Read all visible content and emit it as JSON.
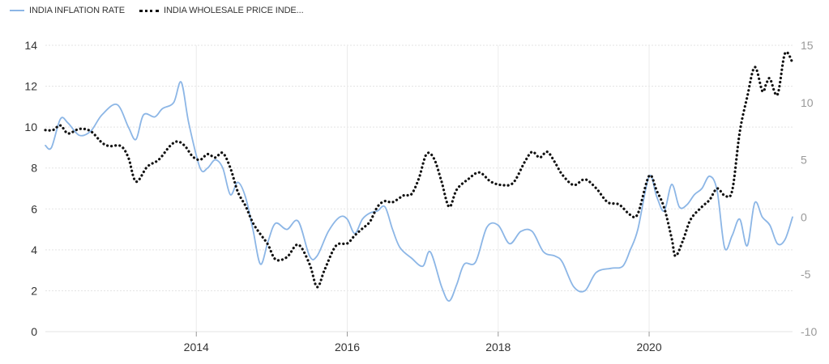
{
  "legend": [
    {
      "label": "INDIA INFLATION RATE",
      "color": "#8cb6e6",
      "style": "solid"
    },
    {
      "label": "INDIA WHOLESALE PRICE INDE...",
      "color": "#111111",
      "style": "dotted"
    }
  ],
  "chart_data": {
    "type": "line",
    "title": "",
    "xlabel": "",
    "ylabel": "",
    "grid": true,
    "legend_position": "top-left",
    "x_ticks": [
      "2014",
      "2016",
      "2018",
      "2020"
    ],
    "x_range": [
      2012.0,
      2021.9
    ],
    "y_left": {
      "range": [
        0,
        14
      ],
      "ticks": [
        "0",
        "2",
        "4",
        "6",
        "8",
        "10",
        "12",
        "14"
      ]
    },
    "y_right": {
      "range": [
        -10,
        15
      ],
      "ticks": [
        "-10",
        "-5",
        "0",
        "5",
        "10",
        "15"
      ]
    },
    "series": [
      {
        "name": "INDIA INFLATION RATE",
        "axis": "left",
        "color": "#8cb6e6",
        "x": [
          2012.0,
          2012.08,
          2012.2,
          2012.3,
          2012.45,
          2012.6,
          2012.75,
          2012.95,
          2013.1,
          2013.2,
          2013.3,
          2013.45,
          2013.55,
          2013.7,
          2013.8,
          2013.9,
          2014.05,
          2014.15,
          2014.25,
          2014.35,
          2014.45,
          2014.55,
          2014.65,
          2014.75,
          2014.85,
          2014.95,
          2015.05,
          2015.2,
          2015.35,
          2015.5,
          2015.6,
          2015.75,
          2015.9,
          2016.0,
          2016.1,
          2016.2,
          2016.3,
          2016.4,
          2016.5,
          2016.6,
          2016.7,
          2016.85,
          2017.0,
          2017.1,
          2017.25,
          2017.35,
          2017.45,
          2017.55,
          2017.7,
          2017.85,
          2018.0,
          2018.15,
          2018.3,
          2018.45,
          2018.6,
          2018.75,
          2018.85,
          2019.0,
          2019.15,
          2019.3,
          2019.5,
          2019.65,
          2019.75,
          2019.85,
          2020.0,
          2020.1,
          2020.2,
          2020.3,
          2020.4,
          2020.5,
          2020.6,
          2020.7,
          2020.8,
          2020.9,
          2021.0,
          2021.1,
          2021.2,
          2021.3,
          2021.4,
          2021.5,
          2021.6,
          2021.7,
          2021.8,
          2021.9
        ],
        "y": [
          9.1,
          9.0,
          10.4,
          10.2,
          9.6,
          9.8,
          10.6,
          11.1,
          10.0,
          9.4,
          10.6,
          10.5,
          10.9,
          11.2,
          12.2,
          10.2,
          8.0,
          8.0,
          8.4,
          8.0,
          6.7,
          7.3,
          6.6,
          5.0,
          3.3,
          4.4,
          5.3,
          5.0,
          5.4,
          3.7,
          3.7,
          4.9,
          5.6,
          5.5,
          4.8,
          5.5,
          5.8,
          5.9,
          6.1,
          5.0,
          4.1,
          3.6,
          3.2,
          3.9,
          2.2,
          1.5,
          2.3,
          3.3,
          3.4,
          5.1,
          5.2,
          4.3,
          4.9,
          4.9,
          3.9,
          3.7,
          3.4,
          2.2,
          2.0,
          2.9,
          3.1,
          3.2,
          4.0,
          5.0,
          7.6,
          6.6,
          5.9,
          7.2,
          6.1,
          6.2,
          6.7,
          7.0,
          7.6,
          6.9,
          4.1,
          4.7,
          5.5,
          4.2,
          6.3,
          5.6,
          5.2,
          4.3,
          4.5,
          5.6
        ]
      },
      {
        "name": "INDIA WHOLESALE PRICE INDE...",
        "axis": "right",
        "color": "#111111",
        "x": [
          2012.0,
          2012.1,
          2012.2,
          2012.3,
          2012.45,
          2012.6,
          2012.75,
          2012.85,
          2013.0,
          2013.1,
          2013.2,
          2013.35,
          2013.5,
          2013.65,
          2013.75,
          2013.85,
          2013.95,
          2014.05,
          2014.15,
          2014.25,
          2014.35,
          2014.45,
          2014.55,
          2014.65,
          2014.75,
          2014.85,
          2014.95,
          2015.05,
          2015.2,
          2015.35,
          2015.5,
          2015.6,
          2015.7,
          2015.85,
          2016.0,
          2016.1,
          2016.2,
          2016.3,
          2016.4,
          2016.5,
          2016.6,
          2016.75,
          2016.85,
          2016.95,
          2017.05,
          2017.15,
          2017.25,
          2017.35,
          2017.45,
          2017.6,
          2017.75,
          2017.9,
          2018.05,
          2018.2,
          2018.35,
          2018.45,
          2018.55,
          2018.65,
          2018.75,
          2018.85,
          2019.0,
          2019.15,
          2019.3,
          2019.45,
          2019.6,
          2019.75,
          2019.85,
          2020.0,
          2020.1,
          2020.2,
          2020.3,
          2020.35,
          2020.45,
          2020.55,
          2020.7,
          2020.8,
          2020.9,
          2021.0,
          2021.1,
          2021.2,
          2021.3,
          2021.4,
          2021.5,
          2021.55,
          2021.6,
          2021.7,
          2021.8,
          2021.9
        ],
        "y": [
          7.6,
          7.6,
          8.0,
          7.3,
          7.7,
          7.5,
          6.5,
          6.2,
          6.2,
          5.2,
          3.1,
          4.4,
          5.0,
          6.2,
          6.6,
          6.2,
          5.3,
          5.0,
          5.5,
          5.2,
          5.6,
          4.3,
          2.2,
          1.0,
          -0.5,
          -1.5,
          -2.4,
          -3.7,
          -3.5,
          -2.4,
          -4.1,
          -6.1,
          -4.6,
          -2.5,
          -2.3,
          -1.6,
          -1.0,
          -0.4,
          0.9,
          1.4,
          1.3,
          1.9,
          2.0,
          3.4,
          5.5,
          5.1,
          3.1,
          0.9,
          2.4,
          3.3,
          3.9,
          3.1,
          2.8,
          3.0,
          4.8,
          5.7,
          5.2,
          5.7,
          4.8,
          3.7,
          2.8,
          3.3,
          2.5,
          1.3,
          1.1,
          0.2,
          0.3,
          3.6,
          2.3,
          0.8,
          -1.9,
          -3.4,
          -2.0,
          -0.2,
          0.9,
          1.5,
          2.5,
          1.9,
          2.3,
          7.4,
          10.5,
          13.1,
          11.0,
          11.6,
          12.1,
          10.7,
          14.3,
          13.5
        ]
      }
    ]
  }
}
